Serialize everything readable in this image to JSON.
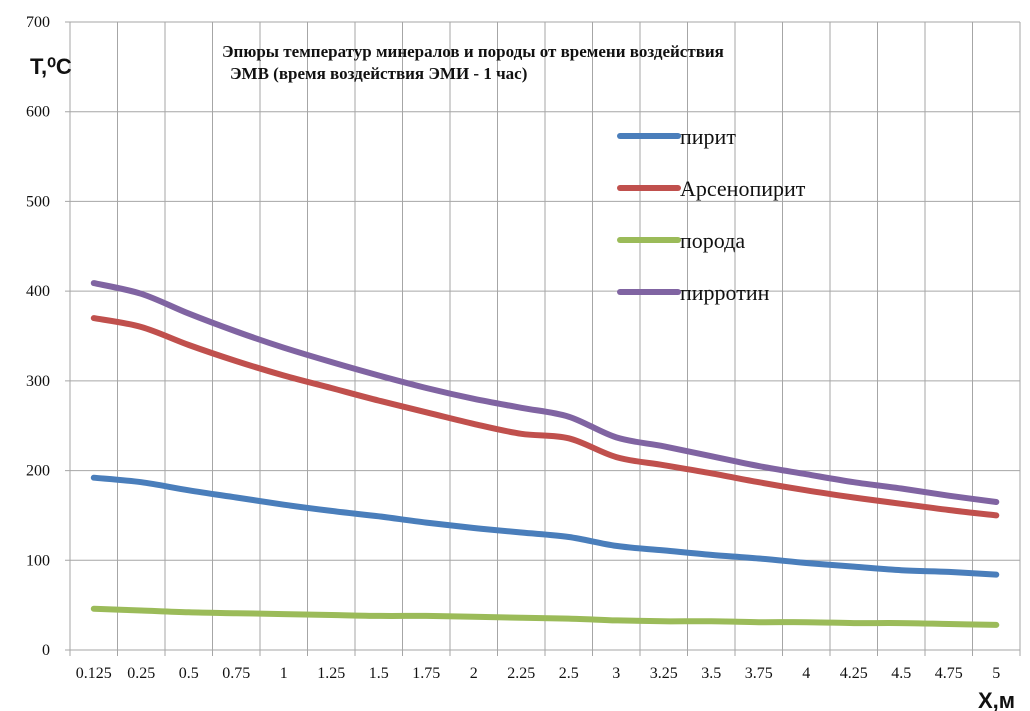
{
  "chart_data": {
    "type": "line",
    "title_line1": "Эпюры температур минералов и породы от времени воздействия",
    "title_line2": "ЭМВ (время воздействия  ЭМИ - 1 час)",
    "ylabel": "T,⁰C",
    "xlabel": "X,м",
    "ylim": [
      0,
      700
    ],
    "yticks": [
      0,
      100,
      200,
      300,
      400,
      500,
      600,
      700
    ],
    "grid": true,
    "legend_position": "top-right",
    "categories": [
      "0.125",
      "0.25",
      "0.5",
      "0.75",
      "1",
      "1.25",
      "1.5",
      "1.75",
      "2",
      "2.25",
      "2.5",
      "3",
      "3.25",
      "3.5",
      "3.75",
      "4",
      "4.25",
      "4.5",
      "4.75",
      "5"
    ],
    "series": [
      {
        "name": "пирит",
        "color": "#4a7ebb",
        "values": [
          192,
          187,
          178,
          170,
          162,
          155,
          149,
          142,
          136,
          131,
          126,
          116,
          111,
          106,
          102,
          97,
          93,
          89,
          87,
          84
        ]
      },
      {
        "name": "Арсенопирит",
        "color": "#c0504d",
        "values": [
          370,
          360,
          340,
          322,
          306,
          292,
          278,
          265,
          252,
          241,
          236,
          215,
          206,
          197,
          187,
          178,
          170,
          163,
          156,
          150
        ]
      },
      {
        "name": "порода",
        "color": "#9bbb59",
        "values": [
          46,
          44,
          42,
          41,
          40,
          39,
          38,
          38,
          37,
          36,
          35,
          33,
          32,
          32,
          31,
          31,
          30,
          30,
          29,
          28
        ]
      },
      {
        "name": "пирротин",
        "color": "#8064a2",
        "values": [
          409,
          397,
          375,
          355,
          337,
          321,
          306,
          292,
          280,
          270,
          260,
          237,
          227,
          216,
          205,
          196,
          187,
          180,
          172,
          165
        ]
      }
    ]
  }
}
